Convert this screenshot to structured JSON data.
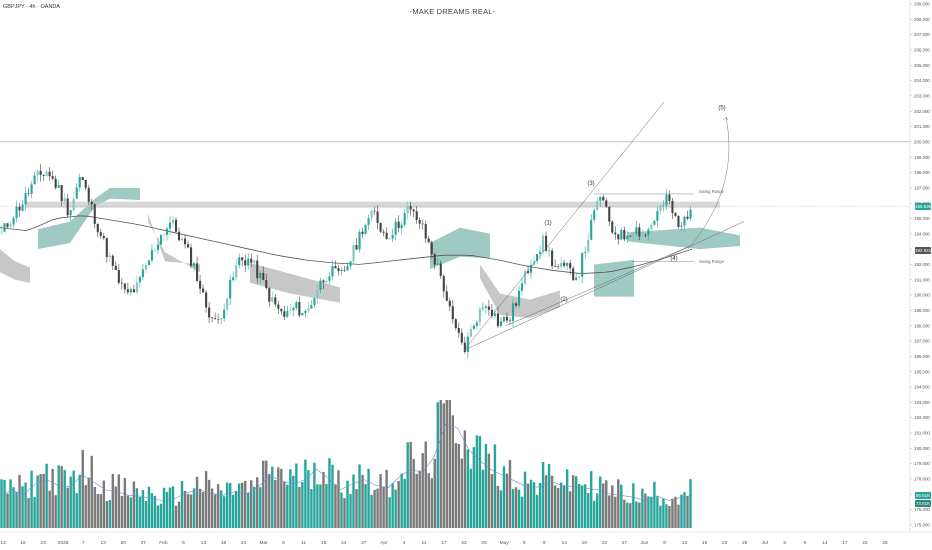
{
  "header": {
    "symbol": "GBPJPY · 4h · OANDA",
    "title": "-MAKE DREAMS REAL-"
  },
  "colors": {
    "bull": "#26a69a",
    "bull_alt": "#7ec9bf",
    "bear": "#444444",
    "volume_bull": "#26a69a",
    "volume_bear": "#7a7a7a",
    "cloud_green": "#7fb8ad",
    "cloud_gray": "#b4b4b4",
    "ma": "#555555",
    "resistance_band": "#c8c8c8",
    "price_line": "#999999",
    "last_price_tag": "#26a69a",
    "secondary_tag": "#555555",
    "volume_tag_1": "#26a69a",
    "volume_tag_2": "#2a8a7e",
    "volume_ma": "#6b8fd0"
  },
  "tags": {
    "last_price": "195.836",
    "secondary_price": "192.941",
    "volume_1": "95.51K",
    "volume_2": "73.61K"
  },
  "chart_data": {
    "type": "candlestick",
    "title": "-MAKE DREAMS REAL-",
    "symbol": "GBPJPY",
    "timeframe": "4h",
    "broker": "OANDA",
    "ylim": [
      174.5,
      209.0
    ],
    "y_ticks": [
      "209.000",
      "208.000",
      "207.000",
      "206.000",
      "205.000",
      "204.000",
      "203.000",
      "202.000",
      "201.000",
      "200.000",
      "199.000",
      "198.000",
      "197.000",
      "196.000",
      "195.000",
      "194.000",
      "193.000",
      "192.000",
      "191.000",
      "190.000",
      "189.000",
      "188.000",
      "187.000",
      "186.000",
      "185.000",
      "184.000",
      "183.000",
      "182.000",
      "181.000",
      "180.000",
      "179.000",
      "178.000",
      "177.000",
      "176.000",
      "175.000"
    ],
    "x_ticks": [
      "13",
      "16",
      "23",
      "2025",
      "7",
      "13",
      "20",
      "27",
      "Feb",
      "6",
      "13",
      "18",
      "24",
      "Mar",
      "6",
      "11",
      "18",
      "24",
      "27",
      "Apr",
      "4",
      "11",
      "17",
      "22",
      "25",
      "May",
      "5",
      "9",
      "14",
      "19",
      "22",
      "27",
      "Jun",
      "9",
      "13",
      "18",
      "23",
      "25",
      "Jul",
      "5",
      "9",
      "14",
      "17",
      "22",
      "25"
    ],
    "series": [
      {
        "name": "GBPJPY",
        "kind": "price_waypoints",
        "values": [
          194.0,
          195.2,
          196.2,
          197.6,
          198.1,
          197.0,
          195.4,
          197.8,
          195.6,
          193.5,
          191.5,
          190.0,
          190.5,
          192.2,
          193.8,
          194.8,
          193.5,
          192.0,
          189.5,
          188.0,
          190.0,
          192.3,
          192.3,
          191.0,
          189.5,
          188.6,
          189.2,
          188.8,
          190.5,
          191.6,
          191.2,
          192.5,
          194.5,
          195.3,
          193.8,
          194.5,
          195.6,
          194.8,
          193.0,
          191.0,
          188.0,
          186.5,
          188.5,
          189.6,
          188.2,
          188.5,
          190.5,
          192.5,
          193.5,
          191.8,
          191.7,
          191.2,
          194.0,
          196.6,
          194.3,
          193.8,
          194.4,
          193.9,
          195.3,
          196.3,
          194.2,
          195.8
        ]
      },
      {
        "name": "Volume",
        "kind": "volume_profile",
        "values": [
          0.3,
          0.35,
          0.3,
          0.4,
          0.45,
          0.4,
          0.35,
          0.5,
          0.45,
          0.35,
          0.35,
          0.3,
          0.3,
          0.28,
          0.25,
          0.25,
          0.3,
          0.35,
          0.35,
          0.3,
          0.3,
          0.35,
          0.3,
          0.4,
          0.5,
          0.42,
          0.4,
          0.45,
          0.55,
          0.45,
          0.35,
          0.4,
          0.45,
          0.4,
          0.35,
          0.45,
          0.55,
          0.5,
          0.55,
          0.95,
          1.0,
          0.75,
          0.65,
          0.55,
          0.5,
          0.45,
          0.4,
          0.35,
          0.4,
          0.45,
          0.35,
          0.4,
          0.35,
          0.35,
          0.3,
          0.3,
          0.28,
          0.25,
          0.3,
          0.25,
          0.28,
          0.3
        ]
      }
    ],
    "annotations": {
      "resistance_level": 200.0,
      "resistance_band": [
        195.7,
        196.1
      ],
      "wave_labels": [
        {
          "label": "(1)",
          "value": 194.6
        },
        {
          "label": "(2)",
          "value": 189.6
        },
        {
          "label": "(3)",
          "value": 197.2
        },
        {
          "label": "(4)",
          "value": 192.3
        },
        {
          "label": "(5)",
          "value": 202.1
        }
      ],
      "swing_range_labels": [
        "Swing Range",
        "Swing Range"
      ],
      "swing_range_levels": [
        196.6,
        192.2
      ]
    },
    "grid": false
  }
}
